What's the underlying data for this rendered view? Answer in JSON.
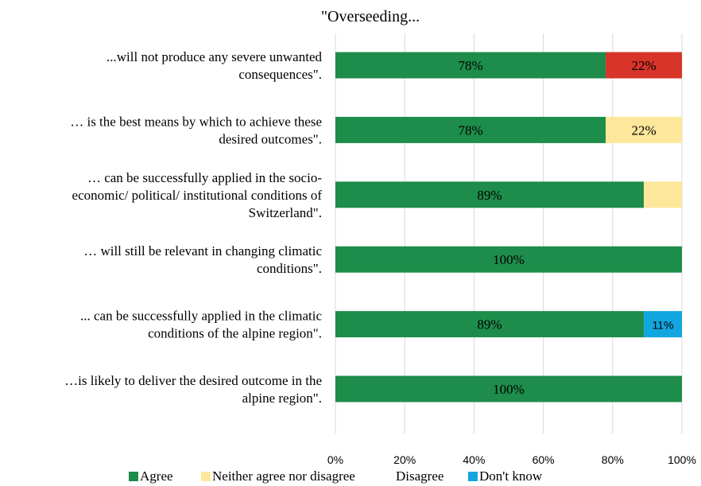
{
  "chart_data": {
    "type": "bar",
    "orientation": "horizontal",
    "stacked": true,
    "title": "\"Overseeding...",
    "categories": [
      "...will not produce any severe unwanted consequences\".",
      "… is the best means by which to achieve these desired outcomes\".",
      "… can be successfully applied in the socio-economic/ political/ institutional conditions of Switzerland\".",
      "… will still be relevant in changing climatic conditions\".",
      "... can be successfully applied in the climatic conditions of the alpine region\".",
      "…is likely to deliver the desired outcome in the alpine region\"."
    ],
    "category_lines": [
      [
        "...will not produce any severe unwanted",
        "consequences\"."
      ],
      [
        "… is the best means by which to achieve these",
        "desired outcomes\"."
      ],
      [
        "… can be successfully applied in the socio-",
        "economic/ political/ institutional conditions of",
        "Switzerland\"."
      ],
      [
        "… will still be relevant in changing climatic",
        "conditions\"."
      ],
      [
        "... can be successfully applied in the climatic",
        "conditions of the alpine region\"."
      ],
      [
        "…is likely to deliver the desired outcome in the",
        "alpine region\"."
      ]
    ],
    "series": [
      {
        "name": "Agree",
        "color": "#1e8c4a",
        "values": [
          78,
          78,
          89,
          100,
          89,
          100
        ],
        "labels": [
          "78%",
          "78%",
          "89%",
          "100%",
          "89%",
          "100%"
        ]
      },
      {
        "name": "Neither agree nor disagree",
        "color": "#fde79a",
        "values": [
          0,
          22,
          11,
          0,
          0,
          0
        ],
        "labels": [
          "",
          "22%",
          "",
          "",
          "",
          ""
        ]
      },
      {
        "name": "Disagree",
        "color": "#d8342a",
        "values": [
          22,
          0,
          0,
          0,
          0,
          0
        ],
        "labels": [
          "22%",
          "",
          "",
          "",
          "",
          ""
        ]
      },
      {
        "name": "Don't know",
        "color": "#12a6e0",
        "values": [
          0,
          0,
          0,
          0,
          11,
          0
        ],
        "labels": [
          "",
          "",
          "",
          "",
          "11%",
          ""
        ]
      }
    ],
    "xlim": [
      0,
      100
    ],
    "xticks": [
      0,
      20,
      40,
      60,
      80,
      100
    ],
    "xtick_labels": [
      "0%",
      "20%",
      "40%",
      "60%",
      "80%",
      "100%"
    ],
    "grid": true,
    "legend": "bottom",
    "legend_entries": [
      {
        "name": "Agree",
        "color": "#1e8c4a",
        "show_swatch": true
      },
      {
        "name": "Neither agree nor disagree",
        "color": "#fde79a",
        "show_swatch": true
      },
      {
        "name": "Disagree",
        "color": "#d8342a",
        "show_swatch": false
      },
      {
        "name": "Don't know",
        "color": "#12a6e0",
        "show_swatch": true
      }
    ]
  }
}
